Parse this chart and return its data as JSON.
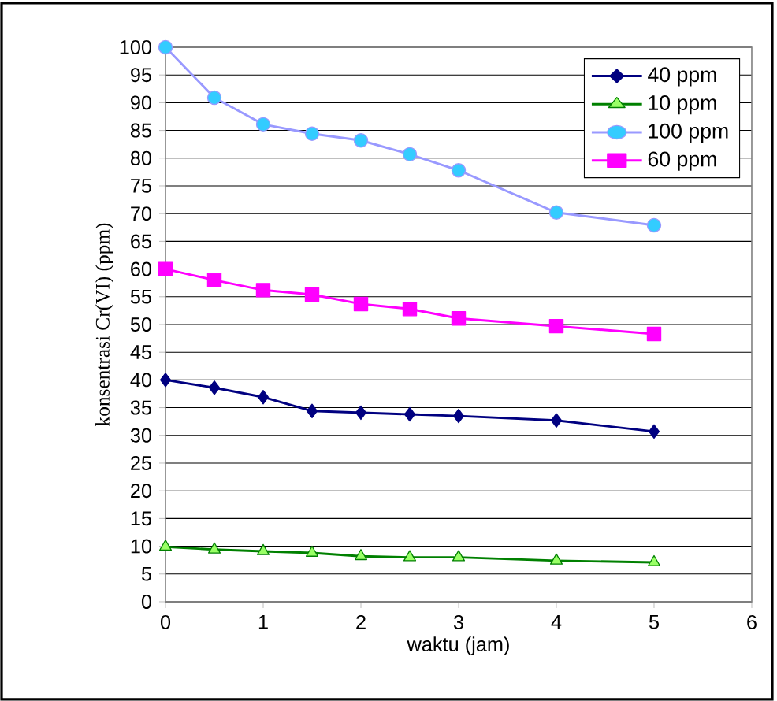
{
  "chart_data": {
    "type": "line",
    "xlabel": "waktu (jam)",
    "ylabel": "konsentrasi Cr(VI) (ppm)",
    "x": [
      0,
      0.5,
      1,
      1.5,
      2,
      2.5,
      3,
      4,
      5
    ],
    "series": [
      {
        "name": "40 ppm",
        "color": "#000080",
        "marker": "diamond",
        "values": [
          40,
          38.6,
          36.9,
          34.4,
          34.1,
          33.8,
          33.5,
          32.7,
          30.7
        ]
      },
      {
        "name": "10 ppm",
        "color": "#008000",
        "marker": "triangle",
        "values": [
          9.9,
          9.4,
          9.1,
          8.8,
          8.2,
          8.0,
          8.0,
          7.4,
          7.1
        ]
      },
      {
        "name": "100 ppm",
        "color": "#9999ff",
        "marker": "circle",
        "values": [
          100,
          90.9,
          86.1,
          84.4,
          83.2,
          80.7,
          77.8,
          70.2,
          67.9
        ]
      },
      {
        "name": "60 ppm",
        "color": "#ff00ff",
        "marker": "square",
        "values": [
          60,
          58,
          56.2,
          55.4,
          53.7,
          52.8,
          51.1,
          49.7,
          48.3
        ]
      }
    ],
    "xlim": [
      0,
      6
    ],
    "xticks": [
      0,
      1,
      2,
      3,
      4,
      5,
      6
    ],
    "ylim": [
      0,
      100
    ],
    "yticks": [
      0,
      5,
      10,
      15,
      20,
      25,
      30,
      35,
      40,
      45,
      50,
      55,
      60,
      65,
      70,
      75,
      80,
      85,
      90,
      95,
      100
    ],
    "grid": "y",
    "legend": "top right"
  }
}
